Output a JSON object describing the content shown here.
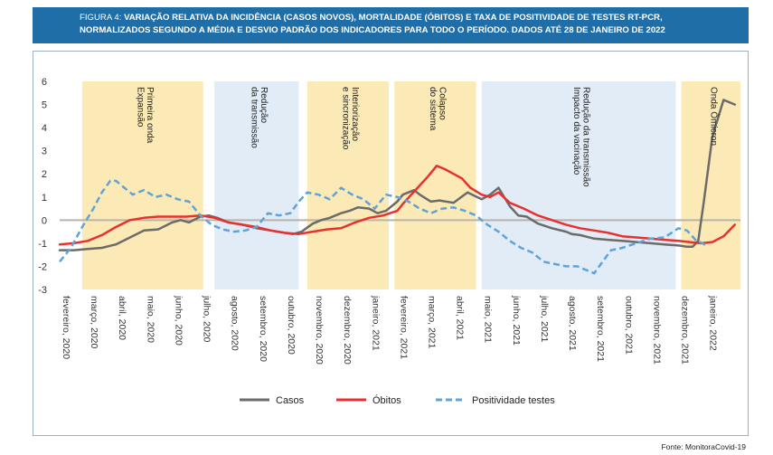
{
  "title": {
    "figure": "FIGURA 4:",
    "line1": "VARIAÇÃO RELATIVA DA INCIDÊNCIA (CASOS NOVOS), MORTALIDADE (ÓBITOS) E TAXA DE POSITIVIDADE DE TESTES RT-PCR,",
    "line2": "NORMALIZADOS SEGUNDO A MÉDIA E DESVIO PADRÃO DOS INDICADORES PARA TODO O PERÍODO. DADOS ATÉ 28 DE JANEIRO DE 2022"
  },
  "source": "Fonte: MonitoraCovid-19",
  "colors": {
    "title_bg": "#1f6ea8",
    "phase_yellow": "#fbeab6",
    "phase_blue": "#e2ecf6",
    "casos": "#6b6b6b",
    "obitos": "#e8312f",
    "positividade": "#5fa3d8",
    "zero_line": "#b9b3ad"
  },
  "chart_data": {
    "type": "line",
    "ylim": [
      -3,
      6
    ],
    "yticks": [
      "6",
      "5",
      "4",
      "3",
      "2",
      "1",
      "0",
      "-1",
      "-2",
      "-3"
    ],
    "xlim": [
      0,
      24.2
    ],
    "month_labels": [
      "fevereiro, 2020",
      "março, 2020",
      "abril, 2020",
      "maio, 2020",
      "junho, 2020",
      "julho, 2020",
      "agosto, 2020",
      "setembro, 2020",
      "outubro, 2020",
      "novembro, 2020",
      "dezembro, 2020",
      "janeiro, 2021",
      "fevereiro, 2021",
      "março, 2021",
      "abril, 2021",
      "maio, 2021",
      "junho, 2021",
      "julho, 2021",
      "agosto, 2021",
      "setembro, 2021",
      "outubro, 2021",
      "novembro, 2021",
      "dezembro, 2021",
      "janeiro, 2022"
    ],
    "phases": [
      {
        "start": 0.8,
        "end": 5.1,
        "kind": "yellow",
        "label_lines": [
          "Primeira onda",
          "Expansão"
        ]
      },
      {
        "start": 5.5,
        "end": 8.5,
        "kind": "blue",
        "label_lines": [
          "Redução",
          "da transmissão"
        ]
      },
      {
        "start": 8.8,
        "end": 11.7,
        "kind": "yellow",
        "label_lines": [
          "Interiorização",
          "e sincronização"
        ]
      },
      {
        "start": 11.9,
        "end": 14.8,
        "kind": "yellow",
        "label_lines": [
          "Colapso",
          "do sistema"
        ]
      },
      {
        "start": 15.0,
        "end": 21.9,
        "kind": "blue",
        "label_lines": [
          "Redução da transmissão",
          "Impacto da vacinação"
        ]
      },
      {
        "start": 22.1,
        "end": 24.2,
        "kind": "yellow",
        "label_lines": [
          "Onda Ômicron"
        ]
      }
    ],
    "series": [
      {
        "name": "Casos",
        "style": "solid",
        "x": [
          0,
          0.5,
          1,
          1.5,
          2,
          2.5,
          3,
          3.5,
          4,
          4.3,
          4.6,
          5,
          5.3,
          5.6,
          6,
          6.5,
          7,
          7.5,
          8,
          8.3,
          8.6,
          9,
          9.3,
          9.6,
          10,
          10.3,
          10.6,
          11,
          11.3,
          11.6,
          12,
          12.2,
          12.4,
          12.6,
          12.8,
          13,
          13.2,
          13.5,
          14,
          14.5,
          15,
          15.3,
          15.6,
          16,
          16.3,
          16.6,
          17,
          17.5,
          18,
          18.2,
          18.5,
          19,
          19.5,
          20,
          20.5,
          21,
          21.5,
          22,
          22.3,
          22.5,
          22.7,
          22.9,
          23.2,
          23.6,
          24
        ],
        "y": [
          -1.3,
          -1.3,
          -1.25,
          -1.2,
          -1.05,
          -0.75,
          -0.45,
          -0.4,
          -0.1,
          0.0,
          -0.1,
          0.15,
          0.2,
          0.1,
          -0.1,
          -0.2,
          -0.35,
          -0.45,
          -0.55,
          -0.6,
          -0.5,
          -0.15,
          0.0,
          0.1,
          0.3,
          0.4,
          0.55,
          0.5,
          0.3,
          0.4,
          0.8,
          1.1,
          1.2,
          1.3,
          1.1,
          0.95,
          0.8,
          0.85,
          0.75,
          1.2,
          0.9,
          1.1,
          1.4,
          0.6,
          0.2,
          0.15,
          -0.15,
          -0.35,
          -0.5,
          -0.6,
          -0.65,
          -0.8,
          -0.85,
          -0.9,
          -0.95,
          -1.0,
          -1.05,
          -1.1,
          -1.15,
          -1.15,
          -0.9,
          0.8,
          3.6,
          5.2,
          5.0
        ]
      },
      {
        "name": "Óbitos",
        "style": "solid",
        "x": [
          0,
          0.5,
          1,
          1.5,
          2,
          2.5,
          3,
          3.5,
          4,
          4.5,
          5,
          5.5,
          6,
          6.5,
          7,
          7.5,
          8,
          8.5,
          9,
          9.5,
          10,
          10.5,
          11,
          11.5,
          12,
          12.2,
          12.5,
          12.8,
          13.1,
          13.4,
          13.7,
          14,
          14.3,
          14.6,
          15,
          15.3,
          15.6,
          16,
          16.5,
          17,
          17.5,
          18,
          18.5,
          19,
          19.5,
          20,
          20.5,
          21,
          21.5,
          22,
          22.4,
          22.8,
          23.2,
          23.6,
          24
        ],
        "y": [
          -1.05,
          -1.0,
          -0.9,
          -0.65,
          -0.3,
          0.0,
          0.1,
          0.15,
          0.15,
          0.15,
          0.2,
          0.1,
          -0.1,
          -0.2,
          -0.3,
          -0.45,
          -0.55,
          -0.6,
          -0.5,
          -0.4,
          -0.35,
          -0.1,
          0.1,
          0.2,
          0.4,
          0.7,
          1.1,
          1.5,
          1.9,
          2.35,
          2.2,
          2.0,
          1.8,
          1.4,
          1.1,
          1.0,
          1.2,
          0.75,
          0.5,
          0.2,
          0.0,
          -0.2,
          -0.35,
          -0.45,
          -0.55,
          -0.7,
          -0.75,
          -0.8,
          -0.85,
          -0.9,
          -0.95,
          -1.0,
          -0.95,
          -0.7,
          -0.2
        ]
      },
      {
        "name": "Positividade testes",
        "style": "dashed",
        "x": [
          0,
          0.4,
          0.8,
          1.2,
          1.5,
          1.8,
          2.0,
          2.3,
          2.6,
          3,
          3.4,
          3.8,
          4.2,
          4.6,
          5.0,
          5.4,
          5.8,
          6.2,
          6.6,
          7.0,
          7.4,
          7.8,
          8.2,
          8.5,
          8.8,
          9.2,
          9.6,
          10,
          10.4,
          10.8,
          11.2,
          11.6,
          12,
          12.4,
          12.8,
          13.2,
          13.6,
          14,
          14.4,
          14.8,
          15.2,
          15.6,
          16,
          16.4,
          16.8,
          17.2,
          17.6,
          18,
          18.4,
          18.7,
          19,
          19.3,
          19.6,
          20,
          20.5,
          21,
          21.5,
          22,
          22.3,
          22.6,
          23
        ],
        "y": [
          -1.8,
          -1.2,
          -0.3,
          0.5,
          1.2,
          1.7,
          1.7,
          1.4,
          1.1,
          1.3,
          1.0,
          1.1,
          0.9,
          0.8,
          0.2,
          -0.2,
          -0.4,
          -0.5,
          -0.45,
          -0.3,
          0.3,
          0.2,
          0.3,
          0.8,
          1.2,
          1.1,
          0.9,
          1.4,
          1.1,
          0.9,
          0.5,
          1.1,
          1.0,
          0.8,
          0.5,
          0.3,
          0.5,
          0.55,
          0.4,
          0.2,
          -0.2,
          -0.5,
          -0.9,
          -1.2,
          -1.4,
          -1.8,
          -1.9,
          -2.0,
          -2.0,
          -2.15,
          -2.3,
          -1.8,
          -1.3,
          -1.2,
          -1.0,
          -0.8,
          -0.75,
          -0.35,
          -0.45,
          -0.85,
          -1.1
        ]
      }
    ],
    "legend": {
      "placement": "bottom-center"
    }
  }
}
